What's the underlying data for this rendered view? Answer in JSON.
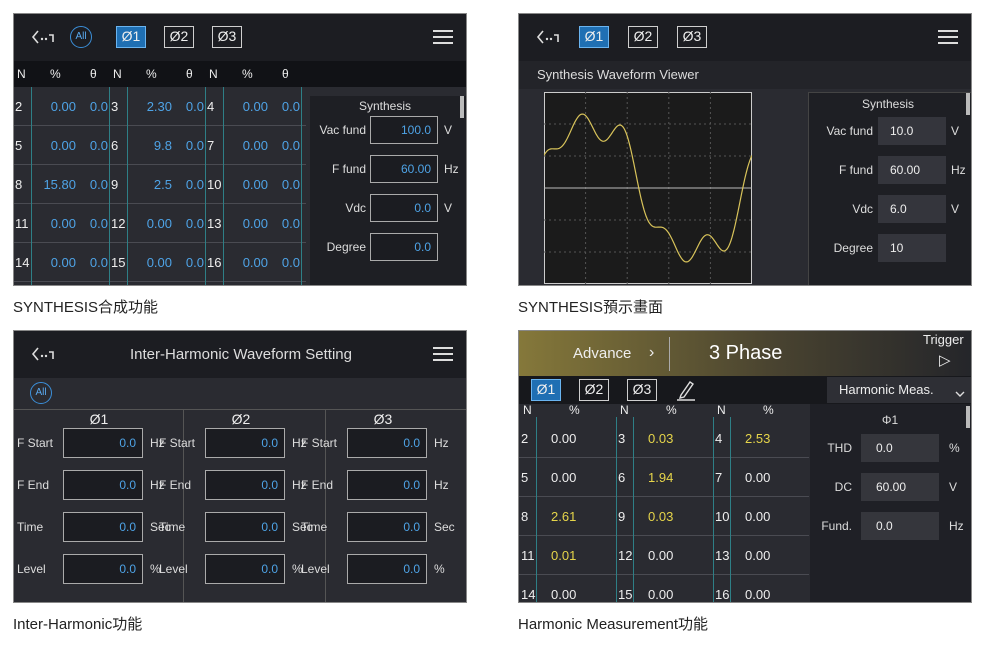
{
  "synthesis": {
    "caption": "SYNTHESIS合成功能",
    "tabs": [
      "All",
      "Ø1",
      "Ø2",
      "Ø3"
    ],
    "columns": [
      "N",
      "%",
      "θ",
      "N",
      "%",
      "θ",
      "N",
      "%",
      "θ"
    ],
    "rows": [
      [
        2,
        "0.00",
        "0.0",
        3,
        "2.30",
        "0.0",
        4,
        "0.00",
        "0.0"
      ],
      [
        5,
        "0.00",
        "0.0",
        6,
        "9.8",
        "0.0",
        7,
        "0.00",
        "0.0"
      ],
      [
        8,
        "15.80",
        "0.0",
        9,
        "2.5",
        "0.0",
        10,
        "0.00",
        "0.0"
      ],
      [
        11,
        "0.00",
        "0.0",
        12,
        "0.00",
        "0.0",
        13,
        "0.00",
        "0.0"
      ],
      [
        14,
        "0.00",
        "0.0",
        15,
        "0.00",
        "0.0",
        16,
        "0.00",
        "0.0"
      ]
    ],
    "side": {
      "title": "Synthesis",
      "fields": [
        {
          "label": "Vac fund",
          "value": "100.0",
          "unit": "V"
        },
        {
          "label": "F fund",
          "value": "60.00",
          "unit": "Hz"
        },
        {
          "label": "Vdc",
          "value": "0.0",
          "unit": "V"
        },
        {
          "label": "Degree",
          "value": "0.0"
        }
      ]
    }
  },
  "viewer": {
    "caption": "SYNTHESIS預示畫面",
    "tabs": [
      "Ø1",
      "Ø2",
      "Ø3"
    ],
    "title": "Synthesis Waveform Viewer",
    "side": {
      "title": "Synthesis",
      "fields": [
        {
          "label": "Vac fund",
          "value": "10.0",
          "unit": "V"
        },
        {
          "label": "F fund",
          "value": "60.00",
          "unit": "Hz"
        },
        {
          "label": "Vdc",
          "value": "6.0",
          "unit": "V"
        },
        {
          "label": "Degree",
          "value": "10"
        }
      ]
    }
  },
  "inter_harmonic": {
    "caption": "Inter-Harmonic功能",
    "title": "Inter-Harmonic Waveform Setting",
    "all": "All",
    "phases": [
      "Ø1",
      "Ø2",
      "Ø3"
    ],
    "rows": [
      {
        "label": "F Start",
        "values": [
          "0.0",
          "0.0",
          "0.0"
        ],
        "unit": "Hz"
      },
      {
        "label": "F End",
        "values": [
          "0.0",
          "0.0",
          "0.0"
        ],
        "unit": "Hz"
      },
      {
        "label": "Time",
        "values": [
          "0.0",
          "0.0",
          "0.0"
        ],
        "unit": "Sec"
      },
      {
        "label": "Level",
        "values": [
          "0.0",
          "0.0",
          "0.0"
        ],
        "unit": "%"
      }
    ]
  },
  "harmonic": {
    "caption": "Harmonic Measurement功能",
    "mode": "Advance",
    "arrow": "›",
    "system": "3 Phase",
    "trigger": "Trigger",
    "trigger_icon": "▷",
    "tabs": [
      "Ø1",
      "Ø2",
      "Ø3"
    ],
    "dropdown": "Harmonic Meas.",
    "columns": [
      "N",
      "%",
      "N",
      "%",
      "N",
      "%"
    ],
    "rows": [
      [
        2,
        "0.00",
        3,
        "0.03",
        4,
        "2.53"
      ],
      [
        5,
        "0.00",
        6,
        "1.94",
        7,
        "0.00"
      ],
      [
        8,
        "2.61",
        9,
        "0.03",
        10,
        "0.00"
      ],
      [
        11,
        "0.01",
        12,
        "0.00",
        13,
        "0.00"
      ],
      [
        14,
        "0.00",
        15,
        "0.00",
        16,
        "0.00"
      ]
    ],
    "side": {
      "title": "Φ1",
      "fields": [
        {
          "label": "THD",
          "value": "0.0",
          "unit": "%"
        },
        {
          "label": "DC",
          "value": "60.00",
          "unit": "V"
        },
        {
          "label": "Fund.",
          "value": "0.0",
          "unit": "Hz"
        }
      ]
    }
  }
}
